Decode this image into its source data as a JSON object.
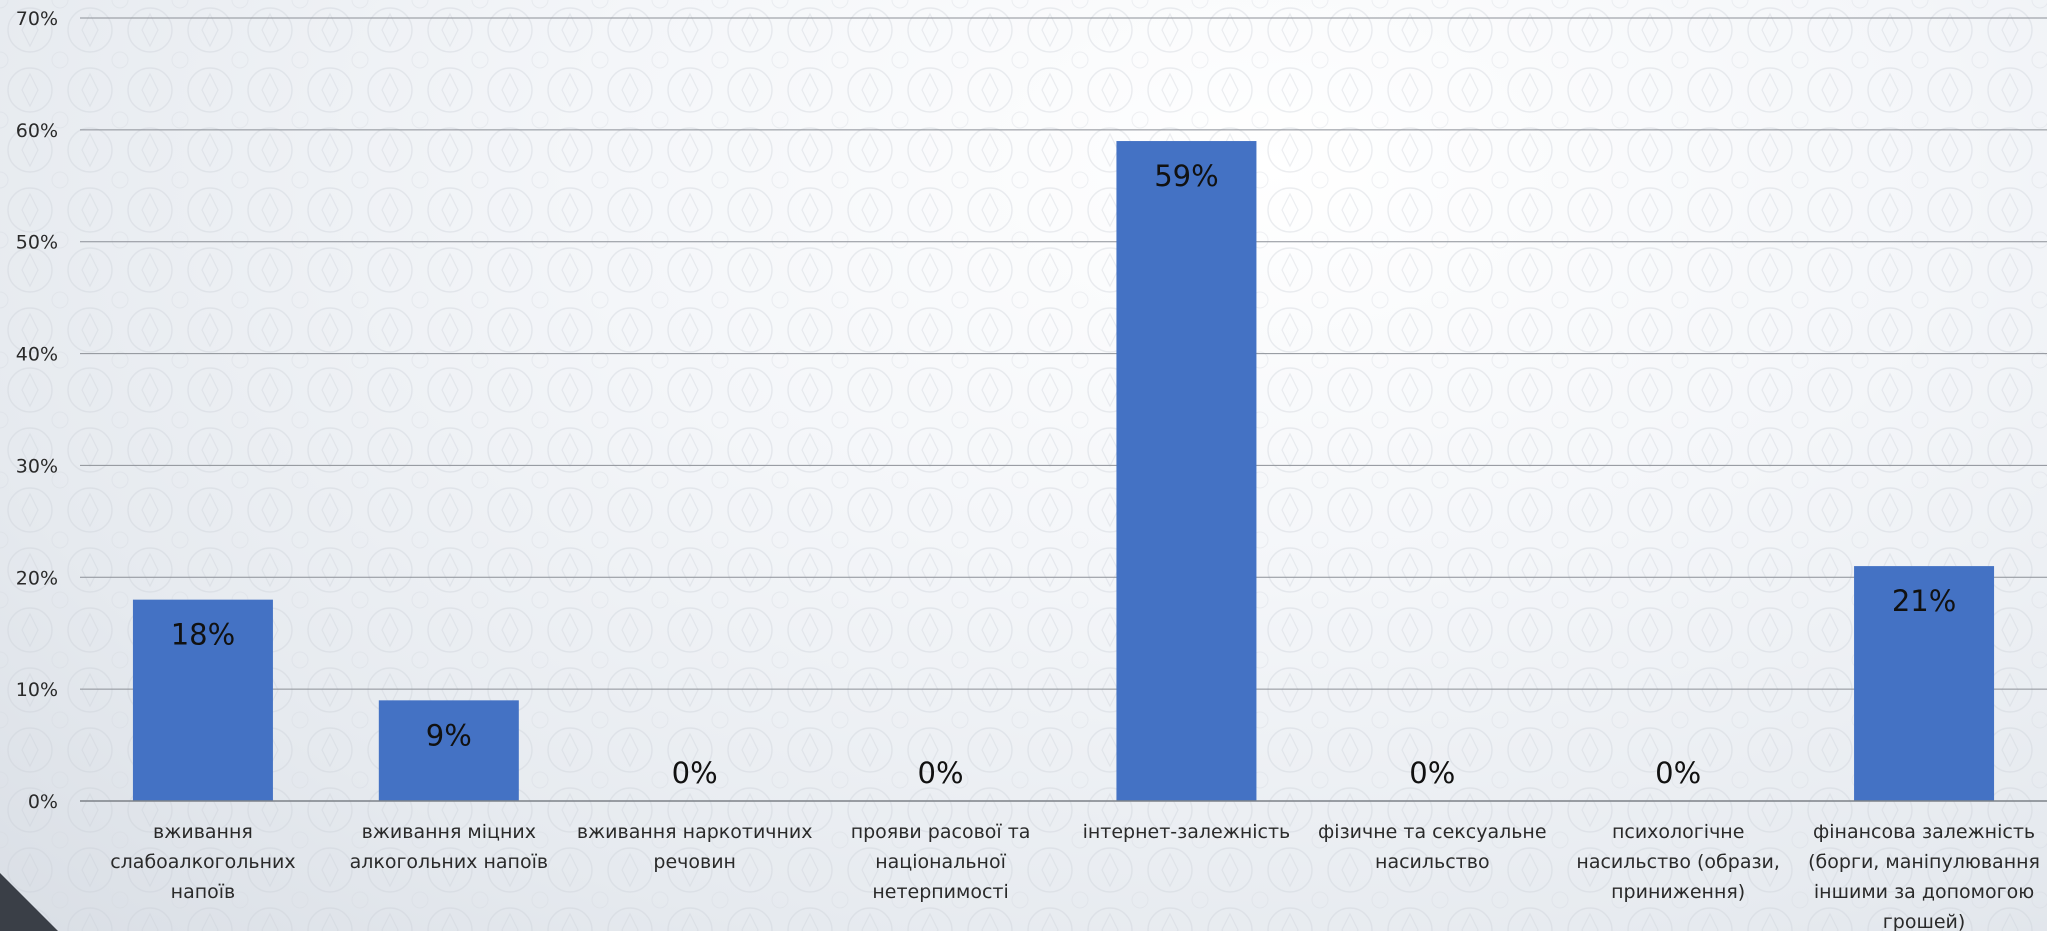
{
  "chart_data": {
    "type": "bar",
    "title": "",
    "xlabel": "",
    "ylabel": "",
    "ylim": [
      0,
      70
    ],
    "y_ticks": [
      "0%",
      "10%",
      "20%",
      "30%",
      "40%",
      "50%",
      "60%",
      "70%"
    ],
    "grid": true,
    "legend": "none",
    "bar_color": "#4472C4",
    "categories": [
      [
        "вживання",
        "слабоалкогольних",
        "напоїв"
      ],
      [
        "вживання міцних",
        "алкогольних напоїв"
      ],
      [
        "вживання наркотичних",
        "речовин"
      ],
      [
        "прояви расової та",
        "національної",
        "нетерпимості"
      ],
      [
        "інтернет-залежність"
      ],
      [
        "фізичне та сексуальне",
        "насильство"
      ],
      [
        "психологічне",
        "насильство (образи,",
        "приниження)"
      ],
      [
        "фінансова залежність",
        "(борги, маніпулювання",
        "іншими за допомогою",
        "грошей)"
      ]
    ],
    "values": [
      18,
      9,
      0,
      0,
      59,
      0,
      0,
      21
    ],
    "data_labels": [
      "18%",
      "9%",
      "0%",
      "0%",
      "59%",
      "0%",
      "0%",
      "21%"
    ]
  }
}
